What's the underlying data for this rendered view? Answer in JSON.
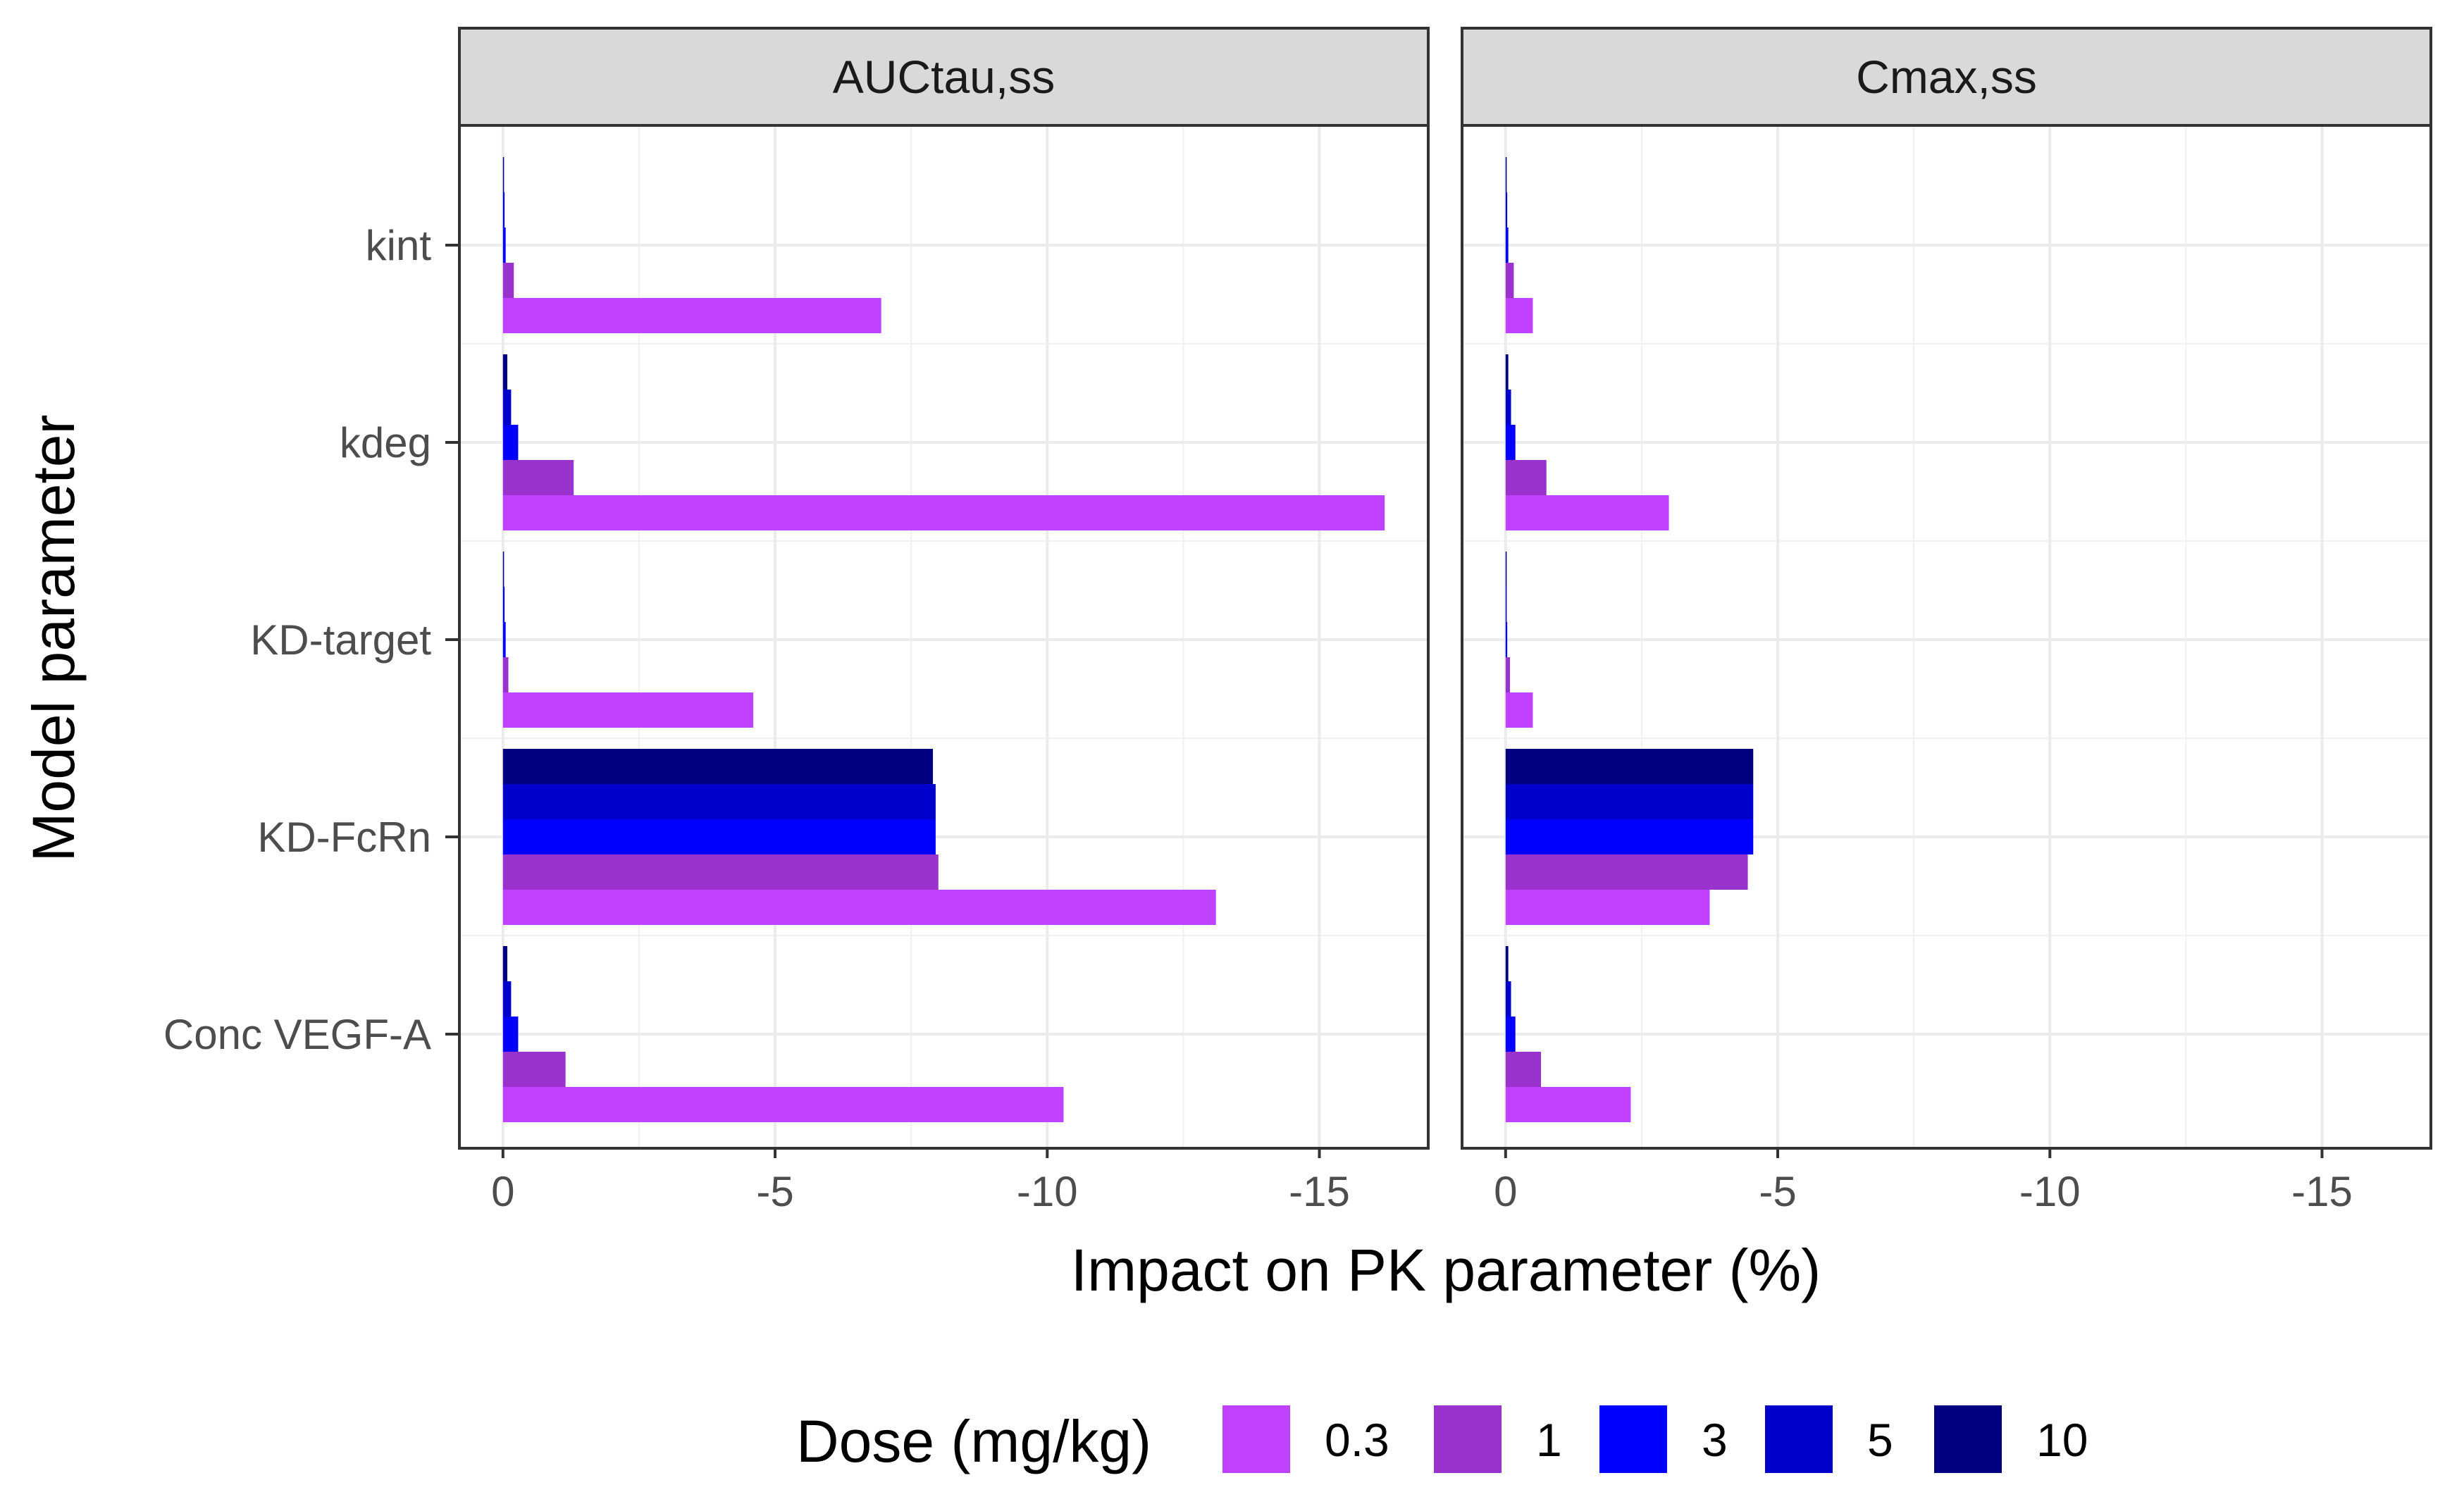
{
  "chart_data": {
    "type": "bar",
    "orientation": "horizontal",
    "xlabel": "Impact on PK parameter (%)",
    "ylabel": "Model parameter",
    "xlim": [
      0.8,
      -17.0
    ],
    "x_ticks": [
      0,
      -5,
      -10,
      -15
    ],
    "x_tick_labels": [
      "0",
      "-5",
      "-10",
      "-15"
    ],
    "categories": [
      "kint",
      "kdeg",
      "KD-target",
      "KD-FcRn",
      "Conc VEGF-A"
    ],
    "legend_title": "Dose (mg/kg)",
    "legend_position": "bottom",
    "grid": true,
    "series_info": [
      {
        "name": "0.3",
        "color": "#BF40FF"
      },
      {
        "name": "1",
        "color": "#9A32CD"
      },
      {
        "name": "3",
        "color": "#0000FF"
      },
      {
        "name": "5",
        "color": "#0000CD"
      },
      {
        "name": "10",
        "color": "#000080"
      }
    ],
    "panels": [
      {
        "title": "AUCtau,ss",
        "series": [
          {
            "name": "0.3",
            "values": [
              -6.95,
              -16.2,
              -4.6,
              -13.1,
              -10.3
            ]
          },
          {
            "name": "1",
            "values": [
              -0.2,
              -1.3,
              -0.1,
              -8.0,
              -1.15
            ]
          },
          {
            "name": "3",
            "values": [
              -0.05,
              -0.28,
              -0.05,
              -7.95,
              -0.28
            ]
          },
          {
            "name": "5",
            "values": [
              -0.03,
              -0.15,
              -0.03,
              -7.95,
              -0.15
            ]
          },
          {
            "name": "10",
            "values": [
              -0.02,
              -0.08,
              -0.02,
              -7.9,
              -0.08
            ]
          }
        ]
      },
      {
        "title": "Cmax,ss",
        "series": [
          {
            "name": "0.3",
            "values": [
              -0.5,
              -3.0,
              -0.5,
              -3.75,
              -2.3
            ]
          },
          {
            "name": "1",
            "values": [
              -0.15,
              -0.75,
              -0.08,
              -4.45,
              -0.65
            ]
          },
          {
            "name": "3",
            "values": [
              -0.05,
              -0.18,
              -0.03,
              -4.55,
              -0.18
            ]
          },
          {
            "name": "5",
            "values": [
              -0.03,
              -0.1,
              -0.02,
              -4.55,
              -0.1
            ]
          },
          {
            "name": "10",
            "values": [
              -0.02,
              -0.05,
              -0.01,
              -4.55,
              -0.05
            ]
          }
        ]
      }
    ]
  }
}
